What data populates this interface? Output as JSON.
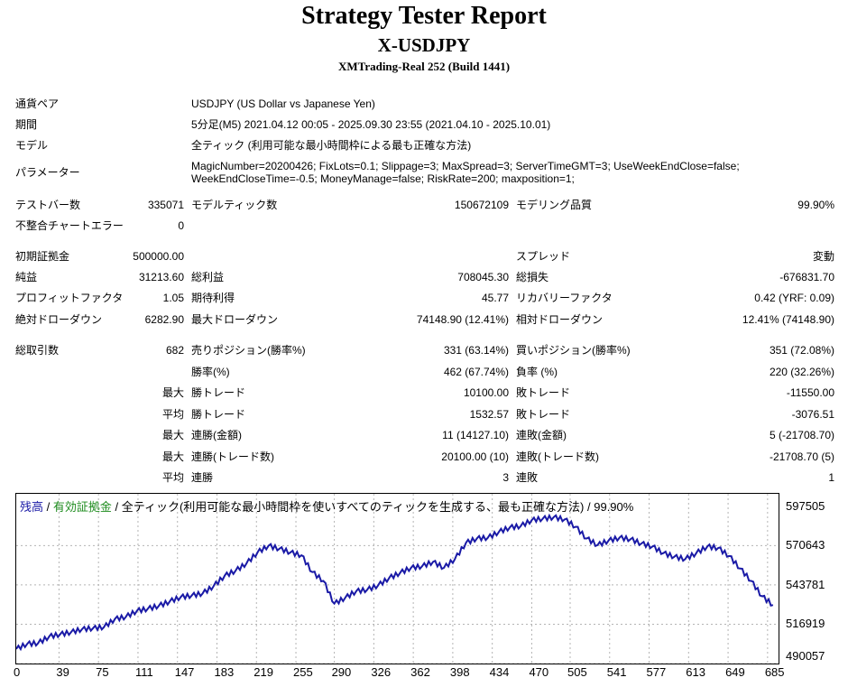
{
  "header": {
    "title": "Strategy Tester Report",
    "subtitle": "X-USDJPY",
    "server": "XMTrading-Real 252 (Build 1441)"
  },
  "info": [
    {
      "label": "通貨ペア",
      "value": "USDJPY (US Dollar vs Japanese Yen)"
    },
    {
      "label": "期間",
      "value": "5分足(M5) 2021.04.12 00:05 - 2025.09.30 23:55 (2021.04.10 - 2025.10.01)"
    },
    {
      "label": "モデル",
      "value": "全ティック (利用可能な最小時間枠による最も正確な方法)"
    },
    {
      "label": "パラメーター",
      "value_line1": "MagicNumber=20200426; FixLots=0.1; Slippage=3; MaxSpread=3; ServerTimeGMT=3; UseWeekEndClose=false;",
      "value_line2": "WeekEndCloseTime=-0.5; MoneyManage=false; RiskRate=200; maxposition=1;"
    }
  ],
  "stats": {
    "test_bars": {
      "label": "テストバー数",
      "value": "335071"
    },
    "model_ticks": {
      "label": "モデルティック数",
      "value": "150672109"
    },
    "model_quality": {
      "label": "モデリング品質",
      "value": "99.90%"
    },
    "mismatch_errors": {
      "label": "不整合チャートエラー",
      "value": "0"
    },
    "initial_deposit": {
      "label": "初期証拠金",
      "value": "500000.00"
    },
    "spread": {
      "label": "スプレッド",
      "value": "変動"
    },
    "net_profit": {
      "label": "純益",
      "value": "31213.60"
    },
    "gross_profit": {
      "label": "総利益",
      "value": "708045.30"
    },
    "gross_loss": {
      "label": "総損失",
      "value": "-676831.70"
    },
    "profit_factor": {
      "label": "プロフィットファクタ",
      "value": "1.05"
    },
    "expected_payoff": {
      "label": "期待利得",
      "value": "45.77"
    },
    "recovery_factor": {
      "label": "リカバリーファクタ",
      "value": "0.42 (YRF: 0.09)"
    },
    "abs_drawdown": {
      "label": "絶対ドローダウン",
      "value": "6282.90"
    },
    "max_drawdown": {
      "label": "最大ドローダウン",
      "value": "74148.90 (12.41%)"
    },
    "rel_drawdown": {
      "label": "相対ドローダウン",
      "value": "12.41% (74148.90)"
    },
    "total_trades": {
      "label": "総取引数",
      "value": "682"
    },
    "short_positions": {
      "label": "売りポジション(勝率%)",
      "value": "331 (63.14%)"
    },
    "long_positions": {
      "label": "買いポジション(勝率%)",
      "value": "351 (72.08%)"
    },
    "win_rate": {
      "label": "勝率(%)",
      "value": "462 (67.74%)"
    },
    "loss_rate": {
      "label": "負率 (%)",
      "value": "220 (32.26%)"
    },
    "largest_win": {
      "prefix": "最大",
      "label": "勝トレード",
      "value": "10100.00"
    },
    "largest_loss": {
      "label": "敗トレード",
      "value": "-11550.00"
    },
    "avg_win": {
      "prefix": "平均",
      "label": "勝トレード",
      "value": "1532.57"
    },
    "avg_loss": {
      "label": "敗トレード",
      "value": "-3076.51"
    },
    "max_consec_wins": {
      "prefix": "最大",
      "label": "連勝(金額)",
      "value": "11 (14127.10)"
    },
    "max_consec_losses": {
      "label": "連敗(金額)",
      "value": "5 (-21708.70)"
    },
    "max_consec_profit": {
      "prefix": "最大",
      "label": "連勝(トレード数)",
      "value": "20100.00 (10)"
    },
    "max_consec_loss": {
      "label": "連敗(トレード数)",
      "value": "-21708.70 (5)"
    },
    "avg_consec_wins": {
      "prefix": "平均",
      "label": "連勝",
      "value": "3"
    },
    "avg_consec_losses": {
      "label": "連敗",
      "value": "1"
    }
  },
  "chart_legend": {
    "balance": "残高",
    "sep1": " / ",
    "equity": "有効証拠金",
    "sep2": " / ",
    "model": "全ティック(利用可能な最小時間枠を使いすべてのティックを生成する、最も正確な方法)",
    "sep3": " / ",
    "quality": "99.90%"
  },
  "colors": {
    "balance": "#1a1aa6",
    "equity": "#1e8c1e",
    "grid": "#b4b4b4"
  },
  "chart_data": {
    "type": "line",
    "x_ticks": [
      "0",
      "39",
      "75",
      "111",
      "147",
      "183",
      "219",
      "255",
      "290",
      "326",
      "362",
      "398",
      "434",
      "470",
      "505",
      "541",
      "577",
      "613",
      "649",
      "685"
    ],
    "y_ticks": [
      "597505",
      "570643",
      "543781",
      "516919",
      "490057"
    ],
    "ylim": [
      490057,
      606000
    ],
    "xlim": [
      0,
      695
    ],
    "series": [
      {
        "name": "残高",
        "x": [
          0,
          10,
          20,
          30,
          40,
          50,
          60,
          70,
          80,
          90,
          100,
          110,
          120,
          130,
          140,
          150,
          160,
          170,
          180,
          190,
          200,
          210,
          220,
          230,
          240,
          250,
          260,
          270,
          280,
          290,
          300,
          310,
          320,
          330,
          340,
          350,
          360,
          370,
          380,
          390,
          400,
          410,
          420,
          430,
          440,
          450,
          460,
          470,
          480,
          490,
          500,
          510,
          520,
          530,
          540,
          550,
          560,
          570,
          580,
          590,
          600,
          610,
          620,
          630,
          640,
          650,
          660,
          670,
          680,
          690
        ],
        "y": [
          500000,
          503500,
          504000,
          508500,
          510000,
          511500,
          513500,
          514200,
          515000,
          520500,
          522000,
          526000,
          527500,
          529500,
          532500,
          535500,
          536500,
          538000,
          543000,
          550000,
          553500,
          558500,
          566000,
          570500,
          568500,
          566000,
          564000,
          552500,
          546500,
          531000,
          535000,
          539500,
          540500,
          543500,
          548500,
          552000,
          555500,
          556500,
          559500,
          555500,
          561500,
          572500,
          575500,
          576000,
          580000,
          583000,
          584000,
          588000,
          589000,
          590000,
          588500,
          583500,
          575500,
          571000,
          574000,
          576000,
          575000,
          572000,
          570000,
          565500,
          563000,
          561500,
          565500,
          570000,
          569000,
          563500,
          555000,
          546500,
          536000,
          530000
        ]
      }
    ]
  }
}
